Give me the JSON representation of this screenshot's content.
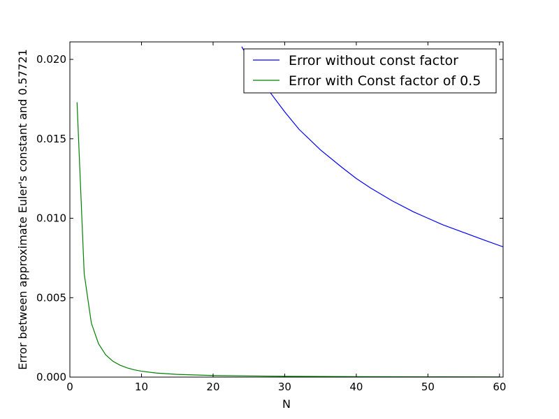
{
  "chart_data": {
    "type": "line",
    "title": "",
    "xlabel": "N",
    "ylabel": "Error between approximate Euler's constant and 0.57721",
    "xlim": [
      0,
      60.5
    ],
    "ylim": [
      0,
      0.0211
    ],
    "x_ticks": [
      0,
      10,
      20,
      30,
      40,
      50,
      60
    ],
    "x_tick_labels": [
      "0",
      "10",
      "20",
      "30",
      "40",
      "50",
      "60"
    ],
    "y_ticks": [
      0,
      0.005,
      0.01,
      0.015,
      0.02
    ],
    "y_tick_labels": [
      "0.000",
      "0.005",
      "0.010",
      "0.015",
      "0.020"
    ],
    "grid": false,
    "legend_placement": "top-right",
    "series": [
      {
        "name": "Error without const factor",
        "color": "#0000ff",
        "x": [
          24,
          25,
          26,
          28,
          30,
          32,
          35,
          38,
          40,
          42,
          45,
          48,
          50,
          52,
          55,
          58,
          60.5
        ],
        "y": [
          0.0208,
          0.02,
          0.0192,
          0.0179,
          0.0167,
          0.0156,
          0.0143,
          0.0132,
          0.0125,
          0.0119,
          0.0111,
          0.0104,
          0.01,
          0.0096,
          0.0091,
          0.0086,
          0.0082
        ]
      },
      {
        "name": "Error with Const factor of 0.5",
        "color": "#008000",
        "x": [
          1,
          2,
          3,
          4,
          5,
          6,
          7,
          8,
          9,
          10,
          12,
          15,
          20,
          30,
          40,
          50,
          60
        ],
        "y": [
          0.0173,
          0.0065,
          0.0034,
          0.0021,
          0.0014,
          0.001,
          0.00075,
          0.00058,
          0.00046,
          0.00037,
          0.00026,
          0.00017,
          0.0001,
          5e-05,
          3e-05,
          2e-05,
          1e-05
        ]
      }
    ]
  }
}
